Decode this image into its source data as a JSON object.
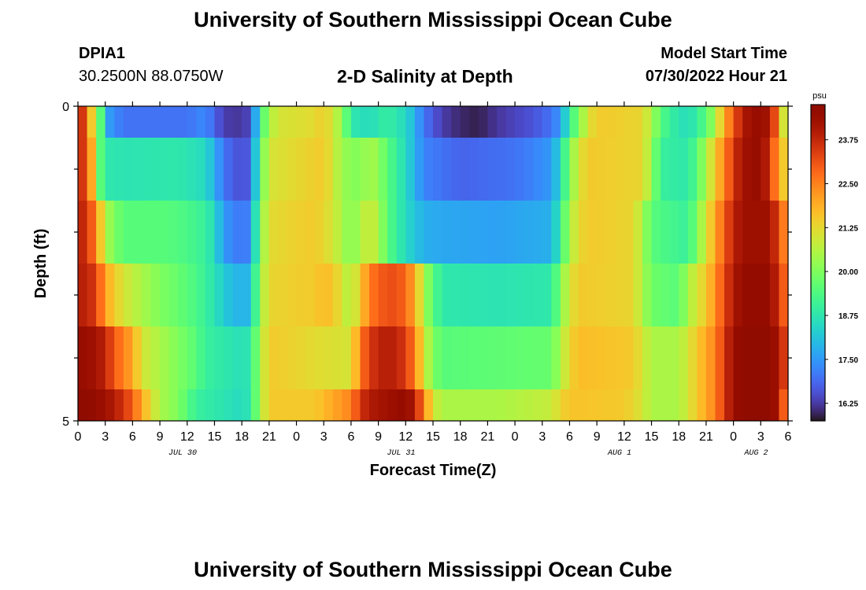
{
  "header": {
    "title": "University of Southern Mississippi Ocean Cube",
    "station": "DPIA1",
    "coordinates": "30.2500N  88.0750W",
    "subtitle": "2-D Salinity at Depth",
    "model_start_label": "Model Start Time",
    "model_start_value": "07/30/2022 Hour 21"
  },
  "footer": {
    "title": "University of Southern Mississippi Ocean Cube"
  },
  "chart_data": {
    "type": "heatmap",
    "title": "2-D Salinity at Depth",
    "xlabel": "Forecast Time(Z)",
    "ylabel": "Depth (ft)",
    "x_range_hours": [
      0,
      78
    ],
    "y_range_ft": [
      0,
      5
    ],
    "x_ticks": [
      "0",
      "3",
      "6",
      "9",
      "12",
      "15",
      "18",
      "21",
      "0",
      "3",
      "6",
      "9",
      "12",
      "15",
      "18",
      "21",
      "0",
      "3",
      "6",
      "9",
      "12",
      "15",
      "18",
      "21",
      "0",
      "3",
      "6"
    ],
    "y_tick_labels": [
      {
        "value": 0,
        "label": "0"
      },
      {
        "value": 5,
        "label": "5"
      }
    ],
    "y_minor_ticks": [
      1,
      2,
      3,
      4
    ],
    "day_labels": [
      {
        "label": "JUL 30",
        "hour": 11.5
      },
      {
        "label": "JUL 31",
        "hour": 35.5
      },
      {
        "label": "AUG 1",
        "hour": 59.5
      },
      {
        "label": "AUG 2",
        "hour": 74.5
      }
    ],
    "colorbar": {
      "unit": "psu",
      "min": 15.75,
      "max": 24.75,
      "ticks": [
        16.25,
        17.5,
        18.75,
        20.0,
        21.25,
        22.5,
        23.75
      ],
      "tick_labels": [
        "16.25",
        "17.50",
        "18.75",
        "20.00",
        "21.25",
        "22.50",
        "23.75"
      ],
      "colormap": "turbo"
    },
    "layers": [
      {
        "depth_range": [
          0,
          0.5
        ],
        "keyframes": [
          [
            0,
            24.0
          ],
          [
            1,
            23.0
          ],
          [
            1.5,
            21.5
          ],
          [
            2.5,
            19.5
          ],
          [
            3.5,
            17.5
          ],
          [
            5,
            17.0
          ],
          [
            12,
            17.0
          ],
          [
            14,
            17.3
          ],
          [
            16,
            16.3
          ],
          [
            18,
            16.2
          ],
          [
            19,
            16.5
          ],
          [
            20,
            19.0
          ],
          [
            21,
            20.5
          ],
          [
            22,
            21.0
          ],
          [
            26,
            21.2
          ],
          [
            27,
            21.5
          ],
          [
            29,
            20.3
          ],
          [
            30,
            18.8
          ],
          [
            32,
            18.5
          ],
          [
            34,
            19.0
          ],
          [
            35,
            18.7
          ],
          [
            36,
            18.5
          ],
          [
            37,
            17.8
          ],
          [
            38,
            17.0
          ],
          [
            40,
            16.3
          ],
          [
            42,
            16.0
          ],
          [
            44,
            15.9
          ],
          [
            46,
            16.2
          ],
          [
            50,
            16.6
          ],
          [
            52,
            17.0
          ],
          [
            53,
            17.5
          ],
          [
            54,
            19.0
          ],
          [
            55,
            20.0
          ],
          [
            56,
            21.0
          ],
          [
            57,
            21.5
          ],
          [
            62,
            21.3
          ],
          [
            63,
            20.5
          ],
          [
            64,
            19.5
          ],
          [
            65,
            19.0
          ],
          [
            67,
            18.5
          ],
          [
            68,
            19.0
          ],
          [
            69,
            19.5
          ],
          [
            70,
            20.5
          ],
          [
            71,
            22.0
          ],
          [
            72,
            23.0
          ],
          [
            73,
            24.0
          ],
          [
            74,
            24.3
          ],
          [
            75,
            24.5
          ],
          [
            76,
            24.0
          ],
          [
            77,
            22.5
          ],
          [
            77.5,
            21.0
          ],
          [
            78,
            20.0
          ]
        ]
      },
      {
        "depth_range": [
          0.5,
          1.5
        ],
        "keyframes": [
          [
            0,
            24.0
          ],
          [
            1,
            23.0
          ],
          [
            1.5,
            22.0
          ],
          [
            2.5,
            19.5
          ],
          [
            3,
            18.8
          ],
          [
            5,
            18.7
          ],
          [
            11,
            18.8
          ],
          [
            14,
            18.5
          ],
          [
            15,
            17.8
          ],
          [
            16,
            17.0
          ],
          [
            18,
            16.5
          ],
          [
            19,
            16.8
          ],
          [
            20,
            19.5
          ],
          [
            21,
            21.0
          ],
          [
            27,
            21.5
          ],
          [
            28,
            21.0
          ],
          [
            29,
            20.3
          ],
          [
            31,
            20.0
          ],
          [
            32,
            20.5
          ],
          [
            33,
            20.2
          ],
          [
            34,
            19.5
          ],
          [
            36,
            18.5
          ],
          [
            38,
            17.2
          ],
          [
            40,
            17.0
          ],
          [
            42,
            16.8
          ],
          [
            48,
            17.0
          ],
          [
            50,
            17.2
          ],
          [
            52,
            17.5
          ],
          [
            53,
            18.5
          ],
          [
            54,
            20.0
          ],
          [
            55,
            21.0
          ],
          [
            56,
            21.5
          ],
          [
            62,
            21.3
          ],
          [
            63,
            20.3
          ],
          [
            64,
            19.0
          ],
          [
            67,
            18.8
          ],
          [
            68,
            19.5
          ],
          [
            69,
            20.5
          ],
          [
            70,
            21.5
          ],
          [
            71,
            22.5
          ],
          [
            72,
            23.5
          ],
          [
            73,
            24.2
          ],
          [
            75,
            24.5
          ],
          [
            76,
            23.5
          ],
          [
            77,
            22.0
          ],
          [
            78,
            21.0
          ]
        ]
      },
      {
        "depth_range": [
          1.5,
          2.5
        ],
        "keyframes": [
          [
            0,
            24.0
          ],
          [
            1,
            23.5
          ],
          [
            2,
            22.5
          ],
          [
            3,
            20.5
          ],
          [
            4,
            20.0
          ],
          [
            5,
            19.5
          ],
          [
            10,
            19.5
          ],
          [
            12,
            19.3
          ],
          [
            14,
            19.0
          ],
          [
            15,
            18.5
          ],
          [
            16,
            17.5
          ],
          [
            18,
            17.0
          ],
          [
            19,
            17.3
          ],
          [
            20,
            20.0
          ],
          [
            21,
            21.2
          ],
          [
            26,
            21.5
          ],
          [
            28,
            21.0
          ],
          [
            29,
            20.5
          ],
          [
            30,
            20.0
          ],
          [
            31,
            20.5
          ],
          [
            32,
            21.0
          ],
          [
            33,
            20.5
          ],
          [
            34,
            19.5
          ],
          [
            36,
            18.5
          ],
          [
            38,
            17.8
          ],
          [
            40,
            17.7
          ],
          [
            46,
            17.6
          ],
          [
            52,
            17.8
          ],
          [
            53,
            19.0
          ],
          [
            54,
            20.5
          ],
          [
            55,
            21.2
          ],
          [
            56,
            21.5
          ],
          [
            61,
            21.3
          ],
          [
            62,
            20.5
          ],
          [
            63,
            19.5
          ],
          [
            67,
            19.0
          ],
          [
            68,
            20.0
          ],
          [
            69,
            21.0
          ],
          [
            70,
            22.0
          ],
          [
            71,
            23.0
          ],
          [
            72,
            23.8
          ],
          [
            73,
            24.3
          ],
          [
            76,
            24.3
          ],
          [
            77,
            23.2
          ],
          [
            78,
            22.0
          ]
        ]
      },
      {
        "depth_range": [
          2.5,
          3.5
        ],
        "keyframes": [
          [
            0,
            24.0
          ],
          [
            2,
            23.5
          ],
          [
            3,
            22.0
          ],
          [
            4,
            21.5
          ],
          [
            5,
            21.0
          ],
          [
            7,
            20.5
          ],
          [
            9,
            20.0
          ],
          [
            11,
            19.7
          ],
          [
            13,
            19.3
          ],
          [
            15,
            18.7
          ],
          [
            16,
            18.2
          ],
          [
            18,
            17.8
          ],
          [
            19,
            18.0
          ],
          [
            20,
            20.3
          ],
          [
            21,
            21.3
          ],
          [
            26,
            21.5
          ],
          [
            27,
            21.7
          ],
          [
            28,
            21.6
          ],
          [
            29,
            21.0
          ],
          [
            30,
            20.5
          ],
          [
            31,
            21.5
          ],
          [
            32,
            22.5
          ],
          [
            33,
            23.0
          ],
          [
            35,
            23.2
          ],
          [
            36,
            22.8
          ],
          [
            37,
            22.0
          ],
          [
            38,
            20.5
          ],
          [
            39,
            19.5
          ],
          [
            40,
            18.8
          ],
          [
            46,
            18.7
          ],
          [
            52,
            18.8
          ],
          [
            53,
            20.0
          ],
          [
            54,
            21.0
          ],
          [
            55,
            21.5
          ],
          [
            61,
            21.3
          ],
          [
            62,
            20.5
          ],
          [
            63,
            19.8
          ],
          [
            66,
            19.5
          ],
          [
            67,
            20.5
          ],
          [
            68,
            21.0
          ],
          [
            69,
            21.5
          ],
          [
            70,
            22.3
          ],
          [
            71,
            23.3
          ],
          [
            72,
            24.0
          ],
          [
            73,
            24.5
          ],
          [
            76,
            24.5
          ],
          [
            77,
            23.5
          ],
          [
            78,
            22.5
          ]
        ]
      },
      {
        "depth_range": [
          3.5,
          4.5
        ],
        "keyframes": [
          [
            0,
            24.5
          ],
          [
            2,
            24.2
          ],
          [
            3,
            23.8
          ],
          [
            4,
            23.0
          ],
          [
            5,
            22.5
          ],
          [
            6,
            22.0
          ],
          [
            7,
            21.0
          ],
          [
            9,
            20.5
          ],
          [
            11,
            20.0
          ],
          [
            13,
            19.5
          ],
          [
            14,
            19.0
          ],
          [
            16,
            18.8
          ],
          [
            18,
            18.6
          ],
          [
            19,
            18.8
          ],
          [
            20,
            20.5
          ],
          [
            21,
            21.5
          ],
          [
            26,
            21.2
          ],
          [
            30,
            21.0
          ],
          [
            31,
            22.5
          ],
          [
            32,
            23.5
          ],
          [
            34,
            24.0
          ],
          [
            36,
            23.5
          ],
          [
            37,
            22.5
          ],
          [
            38,
            21.0
          ],
          [
            39,
            20.0
          ],
          [
            40,
            19.5
          ],
          [
            46,
            19.6
          ],
          [
            52,
            19.7
          ],
          [
            53,
            20.5
          ],
          [
            54,
            21.3
          ],
          [
            55,
            21.7
          ],
          [
            61,
            21.5
          ],
          [
            62,
            21.0
          ],
          [
            63,
            20.5
          ],
          [
            66,
            20.5
          ],
          [
            67,
            21.0
          ],
          [
            68,
            21.5
          ],
          [
            69,
            22.0
          ],
          [
            70,
            22.5
          ],
          [
            71,
            23.5
          ],
          [
            72,
            24.3
          ],
          [
            73,
            24.7
          ],
          [
            76,
            24.7
          ],
          [
            77,
            24.0
          ],
          [
            78,
            23.0
          ]
        ]
      },
      {
        "depth_range": [
          4.5,
          5
        ],
        "keyframes": [
          [
            0,
            24.7
          ],
          [
            2,
            24.5
          ],
          [
            4,
            24.0
          ],
          [
            6,
            23.0
          ],
          [
            7,
            22.0
          ],
          [
            8,
            21.2
          ],
          [
            9,
            20.5
          ],
          [
            11,
            20.0
          ],
          [
            13,
            19.0
          ],
          [
            15,
            18.8
          ],
          [
            18,
            18.5
          ],
          [
            19,
            18.8
          ],
          [
            20,
            20.5
          ],
          [
            21,
            21.5
          ],
          [
            26,
            21.5
          ],
          [
            28,
            22.0
          ],
          [
            30,
            22.5
          ],
          [
            31,
            23.5
          ],
          [
            32,
            24.0
          ],
          [
            36,
            24.5
          ],
          [
            37,
            24.0
          ],
          [
            38,
            22.5
          ],
          [
            39,
            21.0
          ],
          [
            40,
            20.5
          ],
          [
            46,
            20.5
          ],
          [
            52,
            20.8
          ],
          [
            53,
            21.3
          ],
          [
            54,
            21.6
          ],
          [
            60,
            21.5
          ],
          [
            62,
            21.0
          ],
          [
            63,
            20.5
          ],
          [
            66,
            20.5
          ],
          [
            67,
            21.0
          ],
          [
            68,
            21.5
          ],
          [
            69,
            22.0
          ],
          [
            70,
            22.5
          ],
          [
            71,
            23.5
          ],
          [
            72,
            24.3
          ],
          [
            73,
            24.7
          ],
          [
            76,
            24.7
          ],
          [
            77,
            24.0
          ],
          [
            78,
            22.0
          ]
        ]
      }
    ]
  }
}
